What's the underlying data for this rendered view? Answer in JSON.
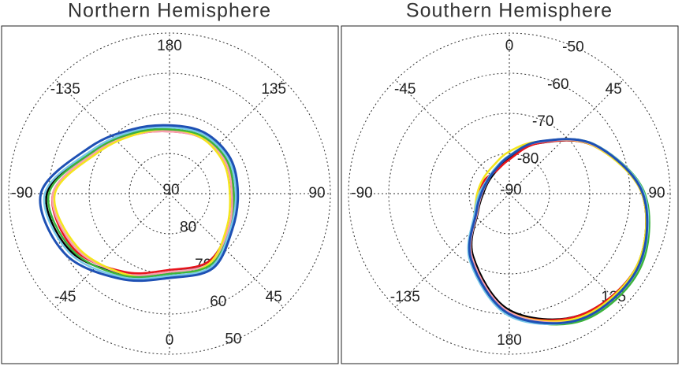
{
  "chart_data": [
    {
      "type": "polar",
      "title": "Northern Hemisphere",
      "theta_zero": "bottom",
      "rlim": [
        90,
        50
      ],
      "rticks": [
        90,
        80,
        70,
        60,
        50
      ],
      "thetaticks": [
        0,
        45,
        90,
        135,
        180,
        -135,
        -90,
        -45
      ],
      "theta": [
        0,
        30,
        60,
        90,
        120,
        150,
        180,
        210,
        240,
        270,
        300,
        330
      ],
      "grid": true,
      "series": [
        {
          "color": "#000000",
          "values": [
            70.5,
            70.5,
            73,
            74.5,
            74,
            74,
            74,
            72.5,
            68.5,
            59.5,
            61.5,
            67
          ]
        },
        {
          "color": "#e8141c",
          "values": [
            71,
            70.5,
            73,
            74,
            74,
            74,
            74.5,
            73,
            69,
            61,
            62.5,
            67.5
          ]
        },
        {
          "color": "#f8a0b0",
          "values": [
            70.5,
            70,
            73,
            74.5,
            74,
            74,
            74.5,
            73,
            69,
            61,
            63,
            67
          ]
        },
        {
          "color": "#f4e61c",
          "values": [
            69,
            70,
            73.5,
            75,
            74.5,
            74,
            74,
            73,
            69.5,
            61.5,
            63.5,
            67
          ]
        },
        {
          "color": "#3cb43c",
          "values": [
            70,
            69.5,
            72.5,
            74,
            73.5,
            73.5,
            74,
            72.5,
            68.5,
            60,
            62,
            66.5
          ]
        },
        {
          "color": "#78c8e8",
          "values": [
            69.5,
            69,
            72.5,
            73.5,
            73,
            73,
            73.5,
            72,
            68,
            59,
            61,
            66
          ]
        },
        {
          "color": "#1e50b4",
          "values": [
            69,
            68.5,
            72,
            73,
            72.5,
            72.5,
            73,
            71.5,
            67,
            58,
            60,
            65.5
          ]
        }
      ]
    },
    {
      "type": "polar",
      "title": "Southern Hemisphere",
      "theta_zero": "top",
      "rlim": [
        -90,
        -50
      ],
      "rticks": [
        -90,
        -80,
        -70,
        -60,
        -50
      ],
      "thetaticks": [
        0,
        45,
        90,
        135,
        180,
        -135,
        -90,
        -45
      ],
      "theta": [
        0,
        30,
        60,
        90,
        120,
        150,
        180,
        210,
        240,
        270,
        300,
        330
      ],
      "grid": true,
      "series": [
        {
          "color": "#000000",
          "values": [
            -81,
            -75.5,
            -66,
            -57,
            -53.5,
            -55,
            -61,
            -72,
            -81,
            -83.5,
            -84,
            -83.5
          ]
        },
        {
          "color": "#e8141c",
          "values": [
            -81.5,
            -75.5,
            -66,
            -57,
            -53.5,
            -55,
            -60.5,
            -71.5,
            -80.5,
            -82.5,
            -83,
            -83.5
          ]
        },
        {
          "color": "#f4e61c",
          "values": [
            -79.5,
            -75,
            -66,
            -57,
            -53.5,
            -54.5,
            -60.5,
            -71,
            -80,
            -82,
            -82.5,
            -82
          ]
        },
        {
          "color": "#f8a0b0",
          "values": [
            -80.5,
            -75.2,
            -65.8,
            -56.5,
            -53,
            -54,
            -60.5,
            -71.5,
            -80.8,
            -83.2,
            -83.8,
            -83
          ]
        },
        {
          "color": "#3cb43c",
          "values": [
            -80.5,
            -75,
            -65.5,
            -56.3,
            -52.5,
            -53.5,
            -60,
            -71,
            -80.5,
            -83,
            -83.5,
            -83
          ]
        },
        {
          "color": "#78c8e8",
          "values": [
            -80.5,
            -75,
            -65.5,
            -56.5,
            -53,
            -54,
            -59.5,
            -70.5,
            -80,
            -82.5,
            -83.5,
            -82.8
          ]
        },
        {
          "color": "#1e50b4",
          "values": [
            -80.7,
            -75,
            -65.6,
            -56.8,
            -53.1,
            -54,
            -60,
            -71,
            -80.5,
            -83,
            -83.7,
            -83.1
          ]
        }
      ]
    }
  ]
}
